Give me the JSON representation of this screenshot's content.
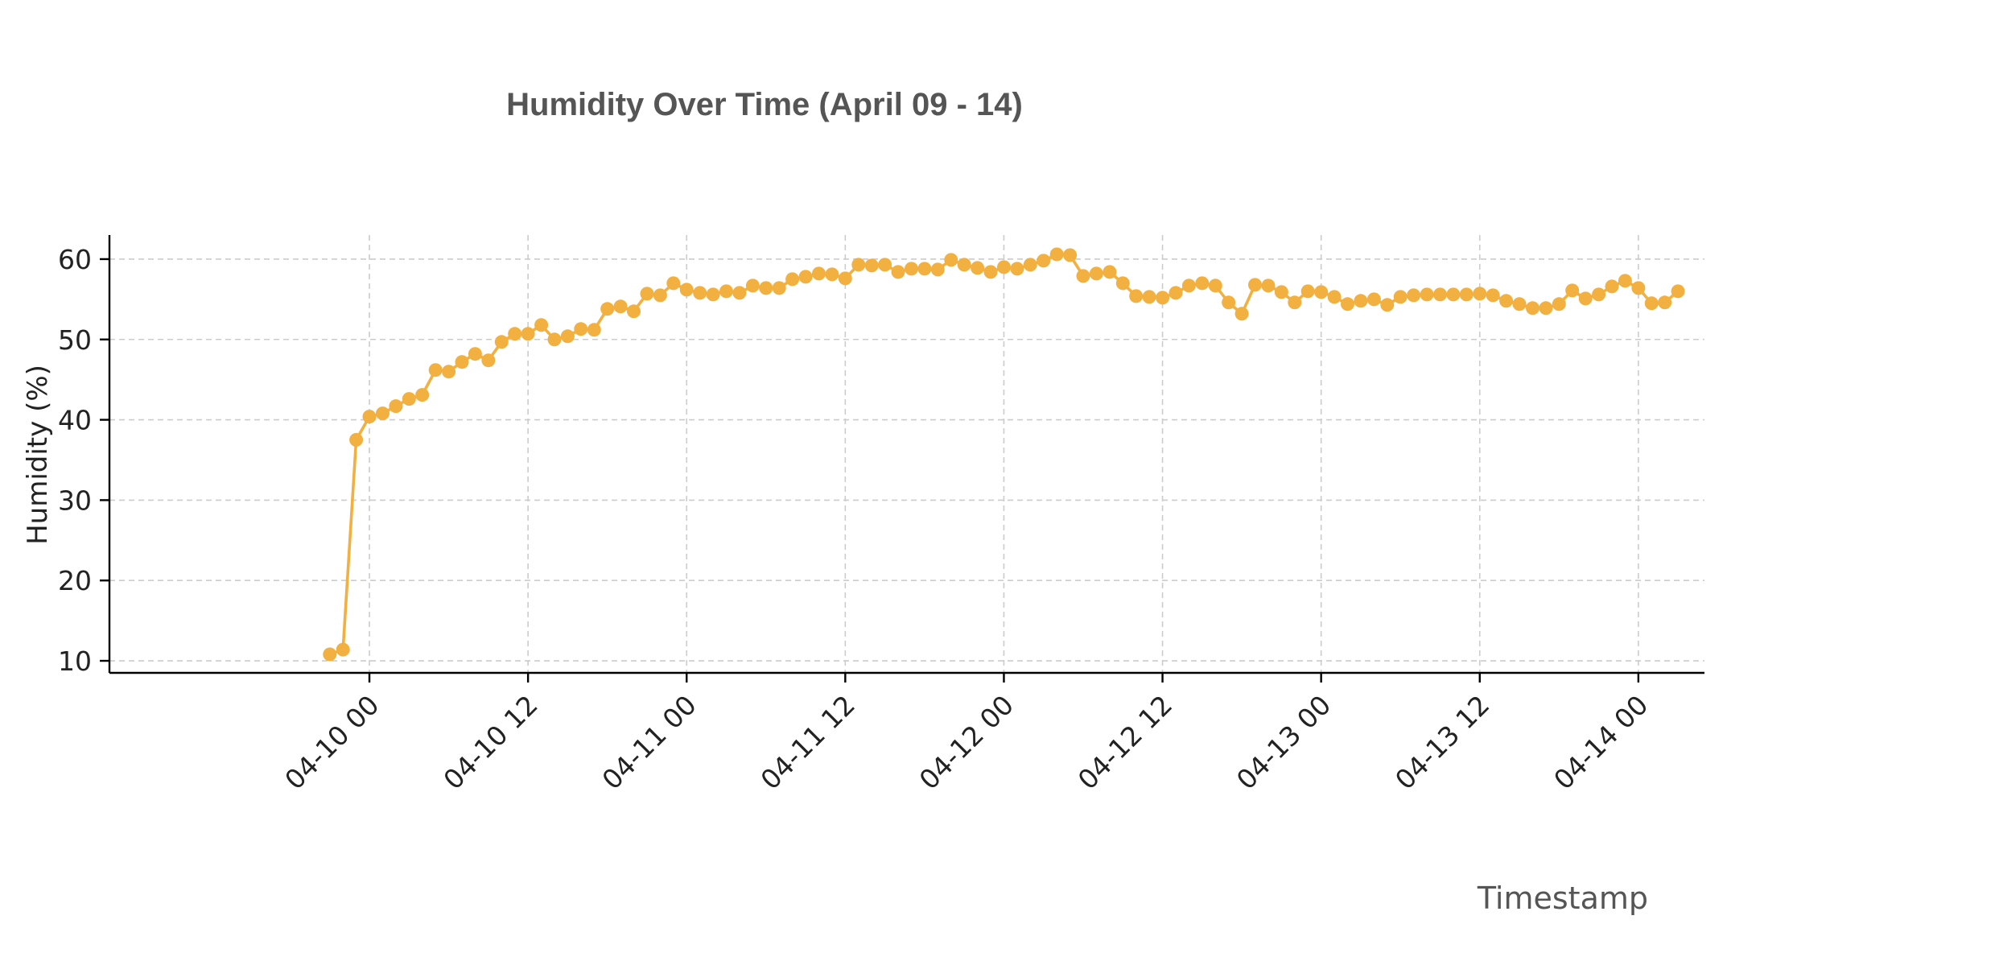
{
  "chart_data": {
    "type": "line",
    "title": "Humidity Over Time (April 09 - 14)",
    "xlabel": "Timestamp",
    "ylabel": "Humidity (%)",
    "color": "#f2b040",
    "grid": true,
    "marker": "circle",
    "x_ticks": [
      {
        "value": "2024-04-10 00:00",
        "label": "04-10 00"
      },
      {
        "value": "2024-04-10 12:00",
        "label": "04-10 12"
      },
      {
        "value": "2024-04-11 00:00",
        "label": "04-11 00"
      },
      {
        "value": "2024-04-11 12:00",
        "label": "04-11 12"
      },
      {
        "value": "2024-04-12 00:00",
        "label": "04-12 00"
      },
      {
        "value": "2024-04-12 12:00",
        "label": "04-12 12"
      },
      {
        "value": "2024-04-13 00:00",
        "label": "04-13 00"
      },
      {
        "value": "2024-04-13 12:00",
        "label": "04-13 12"
      },
      {
        "value": "2024-04-14 00:00",
        "label": "04-14 00"
      }
    ],
    "y_ticks": [
      10,
      20,
      30,
      40,
      50,
      60
    ],
    "xlim": [
      "2024-04-09 04:20",
      "2024-04-14 05:00"
    ],
    "ylim": [
      8.5,
      63.0
    ],
    "start": "2024-04-09 21:00",
    "interval_minutes": 60,
    "values": [
      10.8,
      11.4,
      37.5,
      40.4,
      40.8,
      41.7,
      42.6,
      43.1,
      46.2,
      46.0,
      47.2,
      48.2,
      47.4,
      49.7,
      50.7,
      50.7,
      51.8,
      50.0,
      50.4,
      51.3,
      51.2,
      53.8,
      54.1,
      53.5,
      55.7,
      55.5,
      57.0,
      56.2,
      55.8,
      55.6,
      56.0,
      55.8,
      56.7,
      56.4,
      56.4,
      57.5,
      57.8,
      58.2,
      58.1,
      57.6,
      59.3,
      59.2,
      59.3,
      58.4,
      58.8,
      58.8,
      58.7,
      59.9,
      59.3,
      58.9,
      58.4,
      59.0,
      58.8,
      59.3,
      59.8,
      60.6,
      60.5,
      57.9,
      58.2,
      58.4,
      57.0,
      55.4,
      55.3,
      55.2,
      55.8,
      56.7,
      57.0,
      56.7,
      54.6,
      53.2,
      56.8,
      56.7,
      55.9,
      54.6,
      56.0,
      55.9,
      55.3,
      54.4,
      54.8,
      55.0,
      54.3,
      55.3,
      55.5,
      55.6,
      55.6,
      55.6,
      55.6,
      55.7,
      55.5,
      54.8,
      54.4,
      53.9,
      53.9,
      54.4,
      56.1,
      55.1,
      55.6,
      56.6,
      57.3,
      56.4,
      54.5,
      54.6,
      56.0
    ]
  }
}
